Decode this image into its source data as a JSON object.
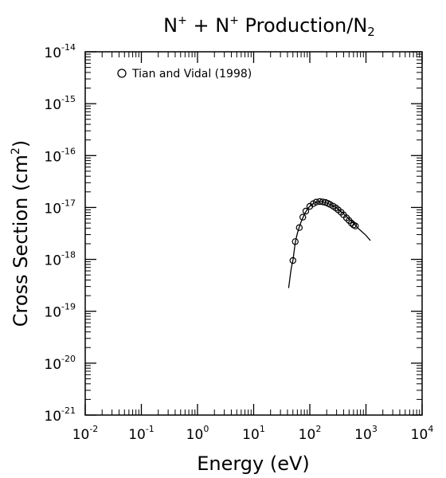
{
  "chart_data": {
    "type": "scatter",
    "title": {
      "p1": "N",
      "sup1": "+",
      "p2": " + N",
      "sup2": "+",
      "p3": " Production/N",
      "sub": "2"
    },
    "xlabel": "Energy (eV)",
    "ylabel": {
      "main": "Cross Section (cm",
      "sup": "2",
      "close": ")"
    },
    "x_scale": "log",
    "y_scale": "log",
    "xlim": [
      0.01,
      10000
    ],
    "ylim": [
      1e-21,
      1e-14
    ],
    "x_ticks": [
      {
        "base": "10",
        "exp": "-2",
        "value": 0.01
      },
      {
        "base": "10",
        "exp": "-1",
        "value": 0.1
      },
      {
        "base": "10",
        "exp": "0",
        "value": 1
      },
      {
        "base": "10",
        "exp": "1",
        "value": 10
      },
      {
        "base": "10",
        "exp": "2",
        "value": 100
      },
      {
        "base": "10",
        "exp": "3",
        "value": 1000
      },
      {
        "base": "10",
        "exp": "4",
        "value": 10000
      }
    ],
    "y_ticks": [
      {
        "base": "10",
        "exp": "-14",
        "value": 1e-14
      },
      {
        "base": "10",
        "exp": "-15",
        "value": 1e-15
      },
      {
        "base": "10",
        "exp": "-16",
        "value": 1e-16
      },
      {
        "base": "10",
        "exp": "-17",
        "value": 1e-17
      },
      {
        "base": "10",
        "exp": "-18",
        "value": 1e-18
      },
      {
        "base": "10",
        "exp": "-19",
        "value": 1e-19
      },
      {
        "base": "10",
        "exp": "-20",
        "value": 1e-20
      },
      {
        "base": "10",
        "exp": "-21",
        "value": 1e-21
      }
    ],
    "grid": false,
    "legend_position": "top-left",
    "series": [
      {
        "name": "Tian and Vidal (1998)",
        "kind": "markers",
        "marker": "open-circle",
        "x": [
          50,
          55,
          65,
          75,
          85,
          100,
          115,
          130,
          150,
          170,
          190,
          210,
          230,
          260,
          290,
          320,
          360,
          400,
          450,
          500,
          550,
          600,
          650
        ],
        "y": [
          9.5e-19,
          2.2e-18,
          4.1e-18,
          6.5e-18,
          8.5e-18,
          1.05e-17,
          1.18e-17,
          1.27e-17,
          1.3e-17,
          1.28e-17,
          1.25e-17,
          1.2e-17,
          1.14e-17,
          1.06e-17,
          9.8e-18,
          9e-18,
          8.1e-18,
          7.2e-18,
          6.3e-18,
          5.6e-18,
          5e-18,
          4.6e-18,
          4.4e-18
        ]
      },
      {
        "name": "",
        "kind": "line",
        "x": [
          42,
          44,
          46,
          48,
          50,
          55,
          60,
          65,
          70,
          80,
          90,
          100,
          115,
          130,
          150,
          170,
          200,
          250,
          300,
          400,
          500,
          600,
          700,
          800,
          1000,
          1200
        ],
        "y": [
          2.8e-19,
          4.2e-19,
          6e-19,
          7.8e-19,
          9.5e-19,
          2.1e-18,
          3.2e-18,
          4.2e-18,
          5.3e-18,
          7.4e-18,
          9.2e-18,
          1.06e-17,
          1.19e-17,
          1.27e-17,
          1.3e-17,
          1.28e-17,
          1.22e-17,
          1.1e-17,
          9.8e-18,
          7.6e-18,
          6e-18,
          5e-18,
          4.1e-18,
          3.6e-18,
          2.9e-18,
          2.3e-18
        ]
      }
    ]
  }
}
